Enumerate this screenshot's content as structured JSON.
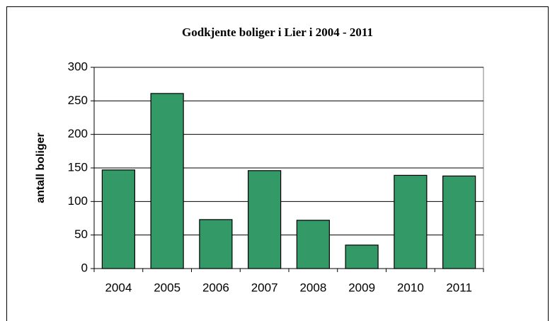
{
  "chart_data": {
    "type": "bar",
    "title": "Godkjente boliger i Lier i 2004 - 2011",
    "y_label": "antall boliger",
    "categories": [
      "2004",
      "2005",
      "2006",
      "2007",
      "2008",
      "2009",
      "2010",
      "2011"
    ],
    "values": [
      147,
      261,
      73,
      146,
      72,
      35,
      139,
      138
    ],
    "color": "#339966",
    "ylim": [
      0,
      300
    ],
    "yticks": [
      0,
      50,
      100,
      150,
      200,
      250,
      300
    ],
    "grid": true
  }
}
